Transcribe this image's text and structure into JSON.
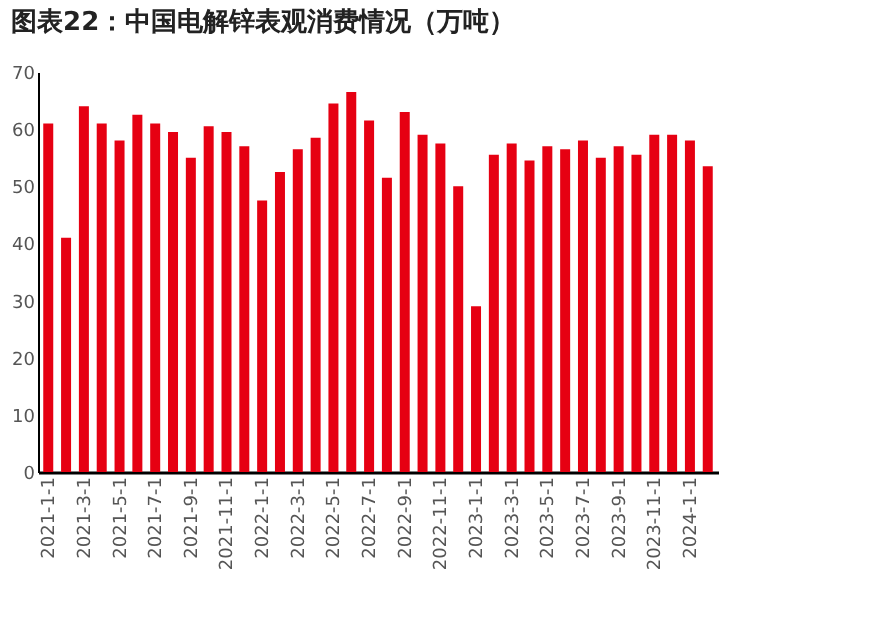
{
  "chart_data": {
    "type": "bar",
    "title": "图表22：中国电解锌表观消费情况（万吨）",
    "categories": [
      "2021-1-1",
      null,
      "2021-3-1",
      null,
      "2021-5-1",
      null,
      "2021-7-1",
      null,
      "2021-9-1",
      null,
      "2021-11-1",
      null,
      "2022-1-1",
      null,
      "2022-3-1",
      null,
      "2022-5-1",
      null,
      "2022-7-1",
      null,
      "2022-9-1",
      null,
      "2022-11-1",
      null,
      "2023-1-1",
      null,
      "2023-3-1",
      null,
      "2023-5-1",
      null,
      "2023-7-1",
      null,
      "2023-9-1",
      null,
      "2023-11-1",
      null,
      "2024-1-1",
      null
    ],
    "values": [
      61,
      41,
      64,
      61,
      58,
      62.5,
      61,
      59.5,
      55,
      60.5,
      59.5,
      57,
      47.5,
      52.5,
      56.5,
      58.5,
      64.5,
      66.5,
      61.5,
      51.5,
      63,
      59,
      57.5,
      50,
      29,
      55.5,
      57.5,
      54.5,
      57,
      56.5,
      58,
      55,
      57,
      55.5,
      59,
      59,
      58,
      53.5
    ],
    "color": "#e60012",
    "ylim": [
      0,
      70
    ],
    "yticks": [
      0,
      10,
      20,
      30,
      40,
      50,
      60,
      70
    ],
    "grid": false
  }
}
